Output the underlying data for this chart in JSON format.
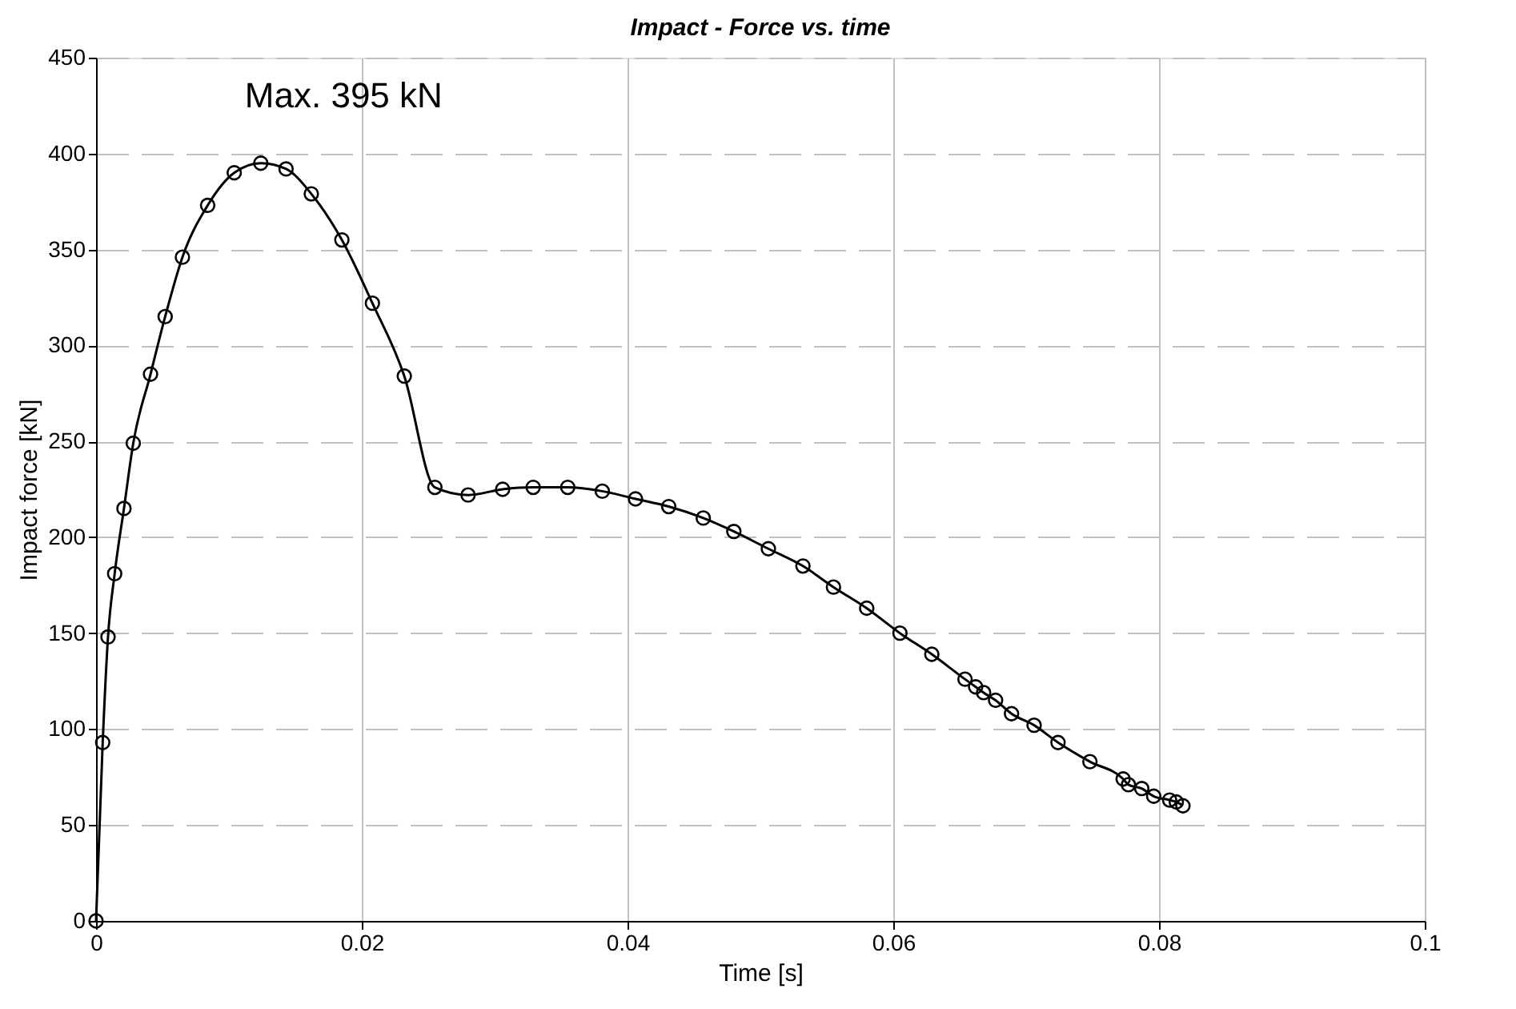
{
  "chart_data": {
    "type": "line",
    "title": "Impact - Force vs. time",
    "xlabel": "Time [s]",
    "ylabel": "Impact force [kN]",
    "x": [
      0,
      0.0005,
      0.0009,
      0.0014,
      0.0021,
      0.0028,
      0.0041,
      0.0052,
      0.0065,
      0.0084,
      0.0104,
      0.0124,
      0.0143,
      0.0162,
      0.0185,
      0.0208,
      0.0232,
      0.0255,
      0.028,
      0.0306,
      0.0329,
      0.0355,
      0.0381,
      0.0406,
      0.0431,
      0.0457,
      0.048,
      0.0506,
      0.0532,
      0.0555,
      0.058,
      0.0605,
      0.0629,
      0.0654,
      0.0662,
      0.0668,
      0.0677,
      0.0689,
      0.0706,
      0.0724,
      0.0748,
      0.0773,
      0.0777,
      0.0787,
      0.0796,
      0.0808,
      0.0813,
      0.0818
    ],
    "series": [
      {
        "color": "#000000",
        "values": [
          0,
          93,
          148,
          181,
          215,
          249,
          285,
          315,
          346,
          373,
          390,
          395,
          392,
          379,
          355,
          322,
          284,
          226,
          222,
          225,
          226,
          226,
          224,
          220,
          216,
          210,
          203,
          194,
          185,
          174,
          163,
          150,
          139,
          126,
          122,
          119,
          115,
          108,
          102,
          93,
          83,
          74,
          71,
          69,
          65,
          63,
          62,
          60
        ]
      }
    ],
    "xlim": [
      0,
      0.1
    ],
    "xticks": [
      0,
      0.02,
      0.04,
      0.06,
      0.08,
      0.1
    ],
    "ylim": [
      0,
      450
    ],
    "yticks": [
      0,
      50,
      100,
      150,
      200,
      250,
      300,
      350,
      400,
      450
    ],
    "grid": true,
    "marker": "circle",
    "line_style": "solid",
    "annotations": [
      {
        "text": "Max. 395 kN",
        "x": 0.0124,
        "y": 395
      }
    ]
  }
}
